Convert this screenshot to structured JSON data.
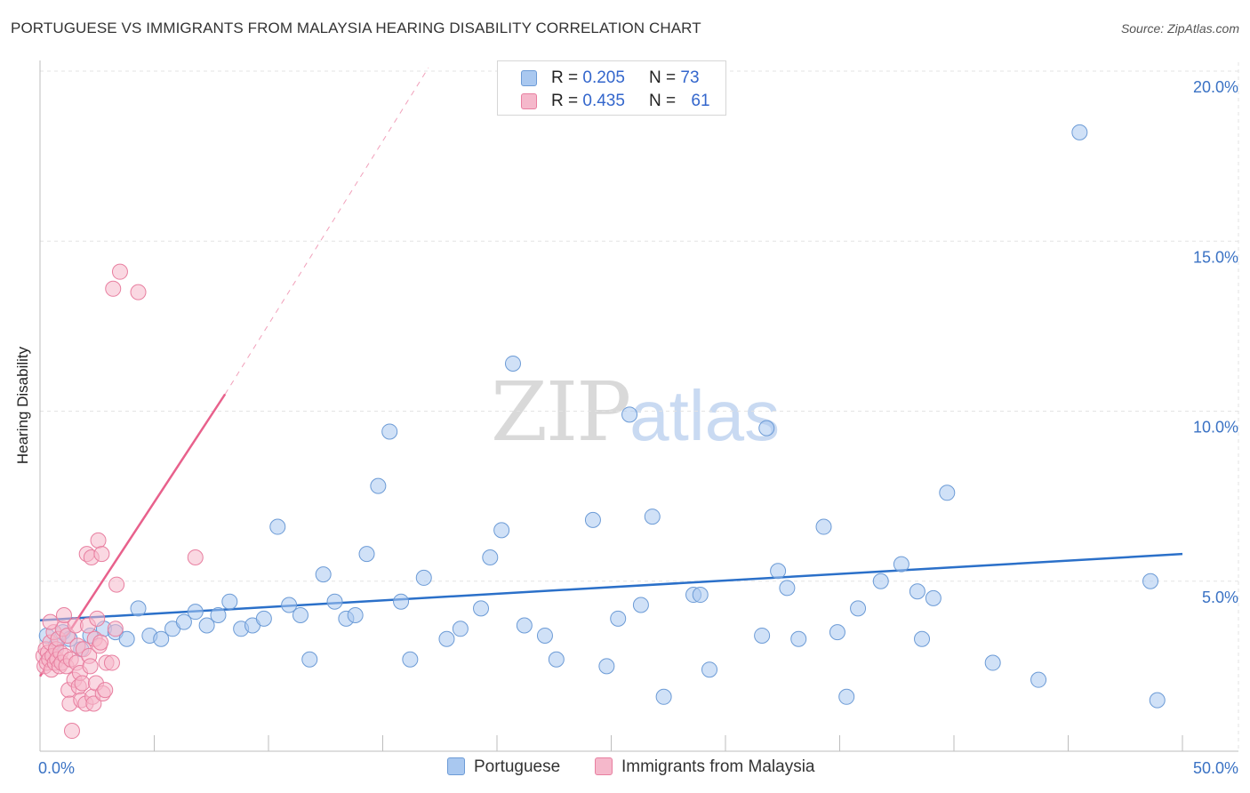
{
  "title": "PORTUGUESE VS IMMIGRANTS FROM MALAYSIA HEARING DISABILITY CORRELATION CHART",
  "source": "Source: ZipAtlas.com",
  "watermark": {
    "zip": "ZIP",
    "atlas": "atlas"
  },
  "legend": {
    "rows": [
      {
        "r_label": "R = ",
        "r_value": "0.205",
        "n_label": "N = ",
        "n_value": "73"
      },
      {
        "r_label": "R = ",
        "r_value": "0.435",
        "n_label": "N = ",
        "n_value": "61"
      }
    ]
  },
  "bottom_legend": [
    "Portuguese",
    "Immigrants from Malaysia"
  ],
  "colors": {
    "blue_fill": "#a9c8f0",
    "blue_stroke": "#6c9bd6",
    "blue_line": "#2b70c9",
    "pink_fill": "#f5b8cb",
    "pink_stroke": "#e87fa0",
    "pink_line": "#e8618c",
    "tick_label": "#3a72c4",
    "grid": "#e3e3e3"
  },
  "chart_data": {
    "type": "scatter",
    "title": "PORTUGUESE VS IMMIGRANTS FROM MALAYSIA HEARING DISABILITY CORRELATION CHART",
    "xlabel": "",
    "ylabel": "Hearing Disability",
    "xlim": [
      0,
      50
    ],
    "ylim": [
      0,
      20.5
    ],
    "x_tick_labels": [
      {
        "x": 0,
        "label": "0.0%"
      },
      {
        "x": 50,
        "label": "50.0%"
      }
    ],
    "x_minor_ticks": [
      0,
      5,
      10,
      15,
      20,
      25,
      30,
      35,
      40,
      45,
      50
    ],
    "y_ticks": [
      {
        "y": 5,
        "label": "5.0%"
      },
      {
        "y": 10,
        "label": "10.0%"
      },
      {
        "y": 15,
        "label": "15.0%"
      },
      {
        "y": 20,
        "label": "20.0%"
      }
    ],
    "grid": true,
    "series": [
      {
        "name": "Portuguese",
        "color": "#a9c8f0",
        "points": [
          [
            0.3,
            3.4
          ],
          [
            0.7,
            3.1
          ],
          [
            1.0,
            3.5
          ],
          [
            1.3,
            3.3
          ],
          [
            1.8,
            3.0
          ],
          [
            2.2,
            3.4
          ],
          [
            2.8,
            3.6
          ],
          [
            3.3,
            3.5
          ],
          [
            3.8,
            3.3
          ],
          [
            4.3,
            4.2
          ],
          [
            4.8,
            3.4
          ],
          [
            5.3,
            3.3
          ],
          [
            5.8,
            3.6
          ],
          [
            6.3,
            3.8
          ],
          [
            6.8,
            4.1
          ],
          [
            7.3,
            3.7
          ],
          [
            7.8,
            4.0
          ],
          [
            8.3,
            4.4
          ],
          [
            8.8,
            3.6
          ],
          [
            9.3,
            3.7
          ],
          [
            9.8,
            3.9
          ],
          [
            10.4,
            6.6
          ],
          [
            10.9,
            4.3
          ],
          [
            11.4,
            4.0
          ],
          [
            11.8,
            2.7
          ],
          [
            12.4,
            5.2
          ],
          [
            12.9,
            4.4
          ],
          [
            13.4,
            3.9
          ],
          [
            13.8,
            4.0
          ],
          [
            14.3,
            5.8
          ],
          [
            14.8,
            7.8
          ],
          [
            15.3,
            9.4
          ],
          [
            15.8,
            4.4
          ],
          [
            16.2,
            2.7
          ],
          [
            16.8,
            5.1
          ],
          [
            17.8,
            3.3
          ],
          [
            18.4,
            3.6
          ],
          [
            19.3,
            4.2
          ],
          [
            19.7,
            5.7
          ],
          [
            20.2,
            6.5
          ],
          [
            20.7,
            11.4
          ],
          [
            21.2,
            3.7
          ],
          [
            22.1,
            3.4
          ],
          [
            22.6,
            2.7
          ],
          [
            24.2,
            6.8
          ],
          [
            24.8,
            2.5
          ],
          [
            25.3,
            3.9
          ],
          [
            25.8,
            9.9
          ],
          [
            26.3,
            4.3
          ],
          [
            26.8,
            6.9
          ],
          [
            27.3,
            1.6
          ],
          [
            28.6,
            4.6
          ],
          [
            28.9,
            4.6
          ],
          [
            29.3,
            2.4
          ],
          [
            31.8,
            9.5
          ],
          [
            31.6,
            3.4
          ],
          [
            32.3,
            5.3
          ],
          [
            32.7,
            4.8
          ],
          [
            33.2,
            3.3
          ],
          [
            34.3,
            6.6
          ],
          [
            34.9,
            3.5
          ],
          [
            35.3,
            1.6
          ],
          [
            35.8,
            4.2
          ],
          [
            36.8,
            5.0
          ],
          [
            37.7,
            5.5
          ],
          [
            38.4,
            4.7
          ],
          [
            38.6,
            3.3
          ],
          [
            39.1,
            4.5
          ],
          [
            39.7,
            7.6
          ],
          [
            41.7,
            2.6
          ],
          [
            43.7,
            2.1
          ],
          [
            45.5,
            18.2
          ],
          [
            48.6,
            5.0
          ],
          [
            48.9,
            1.5
          ]
        ]
      },
      {
        "name": "Immigrants from Malaysia",
        "color": "#f5b8cb",
        "points": [
          [
            0.15,
            2.8
          ],
          [
            0.2,
            2.5
          ],
          [
            0.25,
            3.0
          ],
          [
            0.3,
            2.6
          ],
          [
            0.35,
            2.9
          ],
          [
            0.4,
            2.7
          ],
          [
            0.45,
            3.2
          ],
          [
            0.5,
            2.4
          ],
          [
            0.55,
            2.8
          ],
          [
            0.6,
            3.5
          ],
          [
            0.65,
            2.6
          ],
          [
            0.7,
            3.0
          ],
          [
            0.75,
            2.7
          ],
          [
            0.8,
            3.3
          ],
          [
            0.85,
            2.5
          ],
          [
            0.9,
            2.9
          ],
          [
            0.95,
            2.6
          ],
          [
            1.0,
            3.6
          ],
          [
            1.05,
            4.0
          ],
          [
            1.1,
            2.8
          ],
          [
            1.15,
            2.5
          ],
          [
            1.2,
            3.4
          ],
          [
            1.25,
            1.8
          ],
          [
            1.3,
            1.4
          ],
          [
            1.35,
            2.7
          ],
          [
            1.4,
            0.6
          ],
          [
            1.5,
            2.1
          ],
          [
            1.55,
            3.7
          ],
          [
            1.6,
            2.6
          ],
          [
            1.65,
            3.1
          ],
          [
            1.7,
            1.9
          ],
          [
            1.75,
            2.3
          ],
          [
            1.8,
            1.5
          ],
          [
            1.85,
            2.0
          ],
          [
            1.9,
            3.0
          ],
          [
            2.0,
            1.4
          ],
          [
            2.05,
            5.8
          ],
          [
            2.1,
            3.7
          ],
          [
            2.15,
            2.8
          ],
          [
            2.2,
            2.5
          ],
          [
            2.25,
            5.7
          ],
          [
            2.3,
            1.6
          ],
          [
            2.35,
            1.4
          ],
          [
            2.4,
            3.3
          ],
          [
            2.45,
            2.0
          ],
          [
            2.5,
            3.9
          ],
          [
            2.55,
            6.2
          ],
          [
            2.6,
            3.1
          ],
          [
            2.65,
            3.2
          ],
          [
            2.7,
            5.8
          ],
          [
            2.75,
            1.7
          ],
          [
            2.85,
            1.8
          ],
          [
            2.9,
            2.6
          ],
          [
            3.15,
            2.6
          ],
          [
            3.3,
            3.6
          ],
          [
            3.35,
            4.9
          ],
          [
            3.5,
            14.1
          ],
          [
            3.2,
            13.6
          ],
          [
            4.3,
            13.5
          ],
          [
            6.8,
            5.7
          ],
          [
            0.45,
            3.8
          ]
        ]
      }
    ],
    "trendlines": [
      {
        "series": "Portuguese",
        "style": "solid",
        "from": [
          0,
          3.85
        ],
        "to": [
          50,
          5.8
        ]
      },
      {
        "series": "Immigrants from Malaysia",
        "style": "solid",
        "from": [
          0,
          2.2
        ],
        "to": [
          8.1,
          10.5
        ]
      },
      {
        "series": "Immigrants from Malaysia",
        "style": "dashed",
        "from": [
          8.1,
          10.5
        ],
        "to": [
          17.0,
          20.1
        ]
      }
    ]
  }
}
